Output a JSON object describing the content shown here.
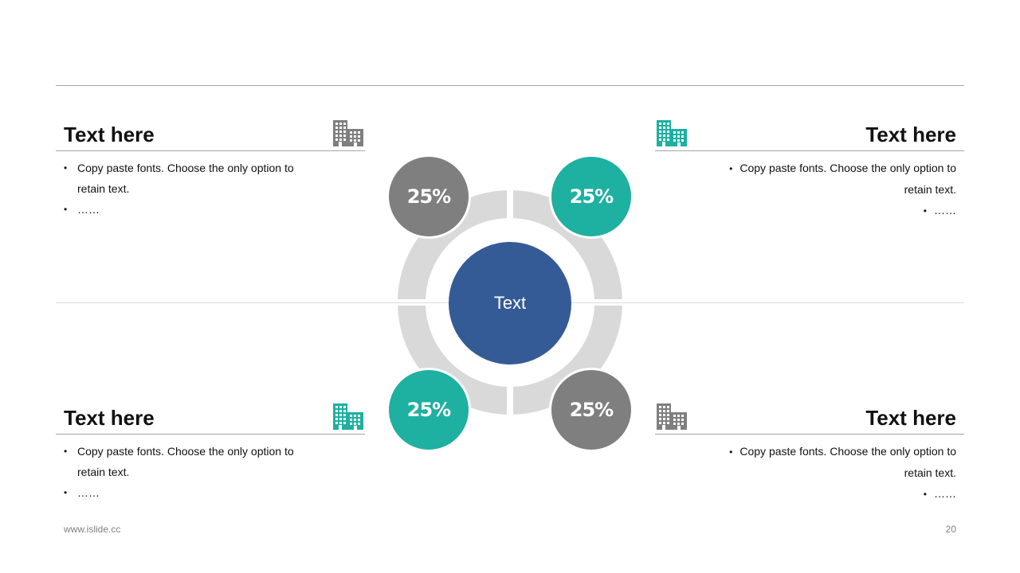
{
  "colors": {
    "gray": "#7f7f7f",
    "teal": "#1eb0a0",
    "navy": "#355b96",
    "ring": "#d9d9d9"
  },
  "center": {
    "label": "Text"
  },
  "badges": [
    {
      "label": "25%",
      "color": "#7f7f7f"
    },
    {
      "label": "25%",
      "color": "#1eb0a0"
    },
    {
      "label": "25%",
      "color": "#1eb0a0"
    },
    {
      "label": "25%",
      "color": "#7f7f7f"
    }
  ],
  "blocks": [
    {
      "title": "Text here",
      "icon": "building-icon",
      "icon_color": "#7f7f7f",
      "bullets": [
        "Copy paste fonts. Choose the only option to retain text.",
        "……"
      ]
    },
    {
      "title": "Text here",
      "icon": "building-icon",
      "icon_color": "#1eb0a0",
      "bullets": [
        "Copy paste fonts. Choose the only option to",
        "retain text.",
        "……"
      ]
    },
    {
      "title": "Text here",
      "icon": "building-icon",
      "icon_color": "#1eb0a0",
      "bullets": [
        "Copy paste fonts. Choose the only option to retain text.",
        "……"
      ]
    },
    {
      "title": "Text here",
      "icon": "building-icon",
      "icon_color": "#7f7f7f",
      "bullets": [
        "Copy paste fonts. Choose the only option to",
        "retain text.",
        "……"
      ]
    }
  ],
  "footer": {
    "website": "www.islide.cc",
    "page_number": "20"
  }
}
